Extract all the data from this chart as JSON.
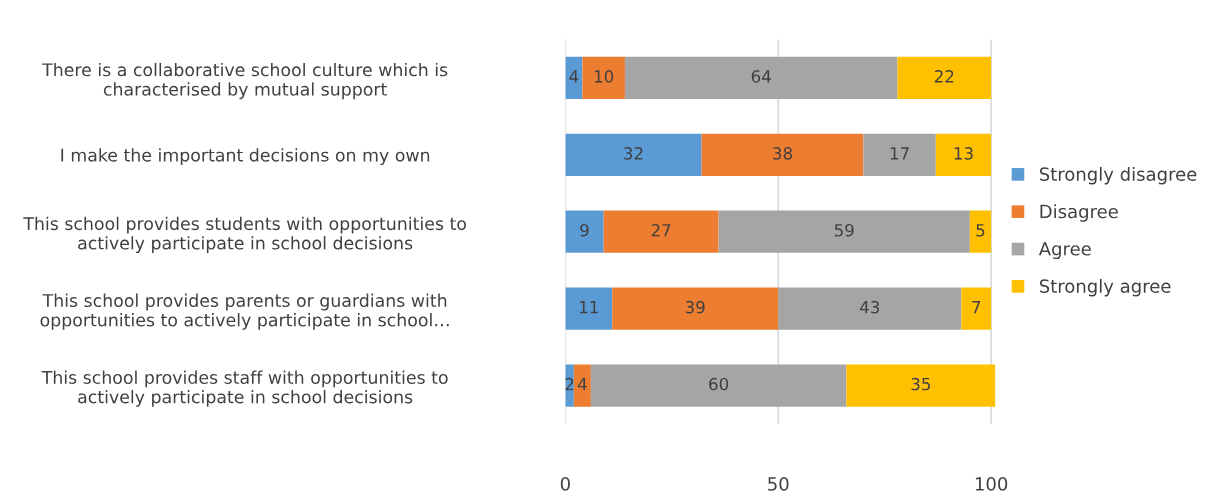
{
  "chart_data": {
    "type": "bar",
    "orientation": "horizontal",
    "stacked": true,
    "categories": [
      "There is a collaborative school culture which is\ncharacterised by mutual support",
      "I make the important decisions on my own",
      "This school provides students with opportunities to\nactively participate in school decisions",
      "This school provides parents or guardians with\nopportunities to actively participate in school…",
      "This school provides staff with opportunities to\nactively participate in school decisions"
    ],
    "series": [
      {
        "name": "Strongly disagree",
        "color": "#5b9bd5",
        "values": [
          4,
          32,
          9,
          11,
          2
        ]
      },
      {
        "name": "Disagree",
        "color": "#ed7d31",
        "values": [
          10,
          38,
          27,
          39,
          4
        ]
      },
      {
        "name": "Agree",
        "color": "#a5a5a5",
        "values": [
          64,
          17,
          59,
          43,
          60
        ]
      },
      {
        "name": "Strongly agree",
        "color": "#ffc000",
        "values": [
          22,
          13,
          5,
          7,
          35
        ]
      }
    ],
    "xlim": [
      0,
      101
    ],
    "xticks": [
      0,
      50,
      100
    ],
    "grid": "x",
    "legend": "right",
    "data_labels": true
  }
}
